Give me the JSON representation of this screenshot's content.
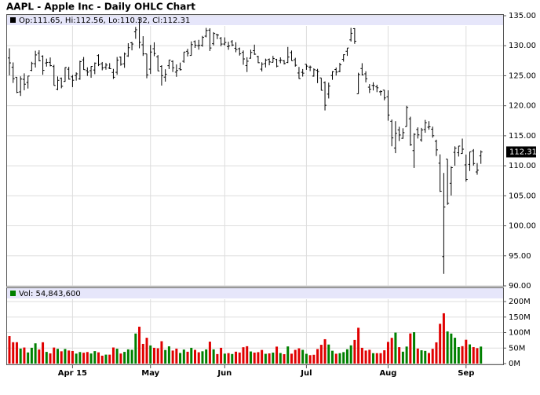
{
  "chart_data": {
    "type": "ohlc",
    "title": "AAPL - Apple Inc - Daily OHLC Chart",
    "info": "Op:111.65, Hi:112.56, Lo:110.32, Cl:112.31",
    "last_label": "112.31",
    "color": "#000000",
    "categories": [
      null,
      null,
      null,
      null,
      null,
      null,
      null,
      null,
      null,
      null,
      null,
      null,
      null,
      null,
      null,
      null,
      null,
      "Apr 15",
      null,
      null,
      null,
      null,
      null,
      null,
      null,
      null,
      null,
      null,
      null,
      null,
      null,
      null,
      null,
      null,
      null,
      null,
      null,
      null,
      "May",
      null,
      null,
      null,
      null,
      null,
      null,
      null,
      null,
      null,
      null,
      null,
      null,
      null,
      null,
      null,
      null,
      null,
      null,
      null,
      "Jun",
      null,
      null,
      null,
      null,
      null,
      null,
      null,
      null,
      null,
      null,
      null,
      null,
      null,
      null,
      null,
      null,
      null,
      null,
      null,
      null,
      null,
      "Jul",
      null,
      null,
      null,
      null,
      null,
      null,
      null,
      null,
      null,
      null,
      null,
      null,
      null,
      null,
      null,
      null,
      null,
      null,
      null,
      null,
      null,
      "Aug",
      null,
      null,
      null,
      null,
      null,
      null,
      null,
      null,
      null,
      null,
      null,
      null,
      null,
      null,
      null,
      null,
      null,
      null,
      null,
      null,
      "Sep",
      null,
      null,
      null,
      null
    ],
    "open": [
      127.96,
      126.41,
      124.75,
      122.31,
      124.4,
      123.88,
      125.9,
      127.0,
      128.75,
      128.25,
      127.12,
      127.23,
      126.54,
      122.76,
      124.57,
      124.05,
      126.09,
      124.82,
      125.03,
      124.47,
      127.64,
      125.85,
      125.85,
      125.95,
      128.37,
      127.0,
      126.41,
      126.28,
      125.55,
      125.57,
      128.1,
      126.99,
      128.3,
      130.49,
      132.31,
      134.46,
      130.16,
      128.64,
      126.1,
      129.5,
      128.15,
      126.56,
      124.77,
      126.68,
      127.39,
      125.6,
      126.15,
      127.41,
      129.07,
      128.38,
      130.69,
      130.0,
      130.07,
      131.6,
      132.6,
      130.34,
      131.86,
      131.23,
      130.28,
      129.86,
      130.66,
      129.58,
      129.5,
      128.9,
      126.7,
      127.92,
      129.18,
      128.19,
      126.1,
      127.03,
      127.72,
      127.23,
      127.71,
      127.49,
      127.48,
      127.21,
      128.86,
      127.67,
      125.46,
      125.57,
      126.9,
      126.43,
      124.94,
      125.89,
      124.64,
      123.85,
      121.94,
      125.03,
      126.04,
      125.72,
      127.74,
      129.08,
      130.97,
      132.85,
      121.99,
      126.2,
      125.32,
      123.09,
      123.38,
      123.15,
      122.32,
      122.6,
      121.5,
      117.42,
      112.95,
      115.97,
      114.58,
      116.53,
      117.81,
      112.53,
      116.04,
      114.32,
      116.04,
      116.43,
      116.1,
      114.08,
      110.43,
      94.87,
      111.11,
      107.09,
      112.23,
      112.17,
      112.03,
      110.15,
      110.23,
      112.49,
      108.97,
      111.65
    ],
    "high": [
      129.57,
      127.22,
      124.77,
      124.9,
      125.4,
      124.95,
      127.32,
      129.16,
      129.25,
      128.4,
      127.85,
      128.04,
      126.82,
      124.88,
      124.7,
      126.4,
      126.49,
      125.12,
      125.56,
      127.51,
      128.12,
      126.4,
      126.58,
      127.21,
      128.57,
      127.29,
      127.13,
      127.1,
      126.14,
      128.12,
      128.2,
      128.87,
      130.42,
      130.63,
      133.13,
      134.54,
      131.59,
      128.64,
      130.13,
      130.57,
      128.45,
      126.75,
      126.08,
      127.62,
      127.56,
      126.88,
      127.19,
      128.95,
      129.49,
      130.72,
      130.88,
      130.98,
      131.63,
      132.97,
      132.91,
      132.26,
      131.95,
      131.45,
      131.39,
      130.66,
      130.94,
      130.58,
      129.69,
      129.21,
      128.08,
      129.34,
      130.18,
      128.33,
      127.24,
      127.85,
      127.88,
      128.31,
      127.82,
      128.06,
      127.61,
      129.8,
      129.2,
      127.99,
      126.47,
      126.12,
      126.94,
      126.69,
      126.23,
      126.15,
      124.64,
      124.06,
      123.85,
      125.76,
      126.37,
      127.15,
      128.57,
      129.62,
      132.97,
      132.92,
      125.5,
      127.09,
      125.74,
      123.61,
      123.91,
      123.5,
      122.57,
      122.64,
      122.57,
      117.7,
      117.44,
      116.5,
      116.25,
      119.99,
      118.18,
      115.42,
      116.4,
      116.31,
      117.65,
      117.44,
      116.52,
      114.35,
      111.9,
      108.8,
      111.11,
      109.89,
      113.24,
      113.31,
      114.53,
      111.88,
      112.34,
      112.78,
      110.45,
      112.56
    ],
    "low": [
      125.06,
      123.8,
      122.11,
      121.63,
      122.58,
      122.87,
      125.76,
      126.37,
      127.4,
      125.16,
      126.52,
      126.56,
      123.38,
      122.6,
      122.91,
      124.0,
      124.36,
      123.1,
      124.19,
      124.33,
      125.98,
      124.97,
      124.66,
      125.26,
      126.61,
      125.91,
      126.01,
      126.11,
      124.46,
      125.17,
      126.67,
      126.32,
      128.14,
      129.23,
      131.15,
      129.57,
      128.3,
      124.58,
      125.3,
      128.26,
      125.78,
      123.36,
      124.02,
      126.11,
      125.62,
      124.82,
      125.87,
      127.16,
      128.21,
      128.36,
      129.64,
      129.34,
      129.83,
      131.4,
      129.12,
      130.05,
      131.1,
      129.9,
      130.05,
      129.32,
      129.9,
      128.91,
      128.36,
      126.83,
      125.62,
      127.85,
      128.48,
      127.11,
      125.71,
      126.37,
      126.74,
      127.22,
      126.4,
      127.08,
      126.88,
      127.12,
      127.5,
      126.51,
      124.48,
      124.86,
      125.99,
      125.77,
      124.85,
      123.77,
      122.54,
      119.22,
      121.21,
      124.32,
      125.04,
      125.58,
      127.35,
      128.31,
      130.7,
      130.32,
      121.99,
      125.06,
      123.9,
      122.12,
      122.55,
      122.27,
      121.71,
      120.91,
      117.52,
      113.25,
      112.1,
      114.12,
      114.5,
      116.53,
      113.33,
      109.63,
      114.54,
      114.01,
      115.5,
      116.01,
      114.68,
      111.63,
      105.65,
      92.0,
      103.5,
      105.05,
      110.02,
      111.54,
      112.0,
      107.36,
      109.13,
      110.04,
      108.51,
      110.32
    ],
    "close": [
      127.14,
      124.51,
      122.24,
      124.45,
      123.59,
      124.95,
      127.04,
      128.47,
      127.5,
      125.9,
      127.21,
      126.69,
      123.38,
      124.24,
      123.25,
      126.37,
      124.43,
      124.25,
      125.32,
      127.35,
      126.01,
      125.6,
      126.56,
      127.1,
      126.85,
      126.3,
      126.78,
      126.17,
      124.75,
      127.6,
      126.91,
      128.62,
      129.67,
      130.28,
      132.65,
      130.56,
      128.64,
      125.15,
      128.95,
      128.7,
      125.8,
      125.01,
      125.26,
      127.62,
      126.32,
      125.87,
      126.01,
      128.95,
      128.77,
      130.19,
      130.07,
      130.06,
      131.39,
      132.54,
      129.62,
      132.04,
      131.78,
      130.28,
      130.54,
      129.96,
      130.12,
      129.36,
      128.65,
      127.8,
      127.42,
      128.88,
      128.59,
      127.17,
      126.92,
      127.6,
      127.3,
      127.88,
      126.6,
      127.61,
      127.03,
      128.11,
      127.5,
      126.75,
      124.53,
      125.43,
      126.6,
      126.44,
      126.0,
      125.69,
      122.57,
      120.07,
      123.28,
      125.66,
      125.61,
      126.82,
      128.51,
      129.62,
      132.07,
      130.75,
      125.22,
      125.16,
      124.5,
      122.77,
      123.38,
      122.99,
      122.37,
      121.3,
      118.44,
      114.64,
      115.4,
      115.13,
      115.52,
      119.72,
      113.49,
      115.24,
      115.15,
      115.96,
      117.16,
      116.5,
      115.01,
      112.65,
      105.76,
      103.12,
      103.74,
      109.69,
      112.92,
      113.29,
      112.76,
      107.72,
      112.34,
      110.37,
      109.27,
      112.31
    ],
    "ylim": [
      90,
      135
    ],
    "yticks": [
      {
        "value": 90,
        "label": "90.00"
      },
      {
        "value": 95,
        "label": "95.00"
      },
      {
        "value": 100,
        "label": "100.00"
      },
      {
        "value": 105,
        "label": "105.00"
      },
      {
        "value": 110,
        "label": "110.00"
      },
      {
        "value": 115,
        "label": "115.00"
      },
      {
        "value": 120,
        "label": "120.00"
      },
      {
        "value": 125,
        "label": "125.00"
      },
      {
        "value": 130,
        "label": "130.00"
      },
      {
        "value": 135,
        "label": "135.00"
      }
    ],
    "grid": true,
    "volume": {
      "label": "Vol: 54,843,600",
      "up_color": "#008000",
      "down_color": "#e00000",
      "values": [
        88500000,
        68900000,
        68900000,
        48400000,
        51800000,
        35900000,
        51000000,
        65300000,
        45400000,
        68700000,
        37700000,
        32800000,
        51700000,
        47600000,
        39600000,
        47100000,
        42100000,
        40600000,
        32200000,
        37200000,
        35000000,
        37300000,
        32500000,
        40200000,
        36300000,
        25500000,
        28900000,
        28800000,
        51900000,
        47900000,
        32400000,
        37700000,
        45800000,
        44500000,
        96900000,
        118900000,
        63400000,
        83200000,
        58500000,
        50900000,
        49300000,
        72100000,
        43900000,
        55600000,
        42000000,
        48200000,
        34200000,
        45200000,
        38200000,
        50900000,
        44300000,
        36500000,
        39700000,
        45600000,
        70700000,
        45800000,
        30700000,
        50900000,
        32100000,
        33700000,
        30900000,
        38400000,
        35600000,
        52700000,
        56000000,
        39100000,
        35400000,
        36900000,
        43900000,
        31500000,
        32900000,
        35400000,
        54700000,
        34000000,
        30300000,
        55300000,
        31900000,
        44200000,
        49200000,
        44300000,
        31500000,
        27200000,
        28400000,
        46900000,
        60600000,
        78600000,
        61400000,
        41400000,
        31800000,
        33600000,
        37000000,
        46200000,
        58800000,
        76200000,
        115500000,
        50900000,
        42000000,
        44500000,
        33600000,
        33600000,
        33600000,
        42900000,
        69900000,
        83000000,
        99900000,
        52900000,
        38400000,
        54900000,
        97100000,
        101200000,
        48500000,
        42900000,
        40900000,
        34100000,
        47700000,
        68500000,
        128300000,
        162200000,
        103600000,
        96800000,
        83300000,
        53200000,
        56200000,
        76800000,
        61900000,
        53000000,
        49800000,
        54843600
      ],
      "ylim": [
        0,
        200000000
      ],
      "yticks": [
        {
          "value": 0,
          "label": "0M"
        },
        {
          "value": 50000000,
          "label": "50M"
        },
        {
          "value": 100000000,
          "label": "100M"
        },
        {
          "value": 150000000,
          "label": "150M"
        },
        {
          "value": 200000000,
          "label": "200M"
        }
      ]
    }
  }
}
